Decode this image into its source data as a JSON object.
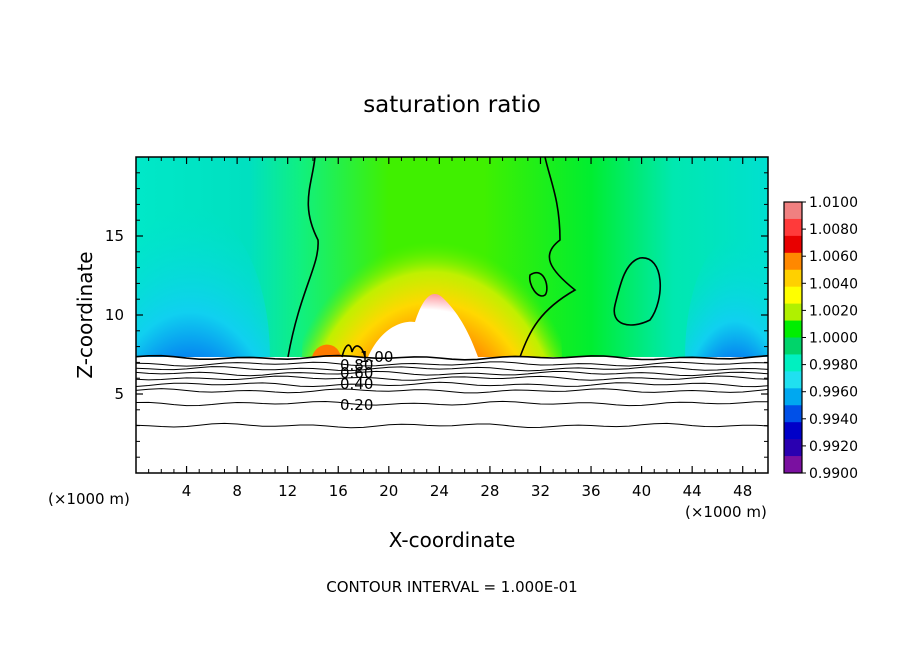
{
  "chart_data": {
    "type": "heatmap",
    "title": "saturation ratio",
    "xlabel": "X-coordinate",
    "ylabel": "Z-coordinate",
    "x_unit_left": "(×1000 m)",
    "x_unit_right": "(×1000 m)",
    "footer": "CONTOUR INTERVAL = 1.000E-01",
    "xlim": [
      0,
      50
    ],
    "ylim": [
      0,
      20
    ],
    "x_ticks": [
      "4",
      "8",
      "12",
      "16",
      "20",
      "24",
      "28",
      "32",
      "36",
      "40",
      "44",
      "48"
    ],
    "x_tick_values": [
      4,
      8,
      12,
      16,
      20,
      24,
      28,
      32,
      36,
      40,
      44,
      48
    ],
    "y_ticks": [
      "5",
      "10",
      "15"
    ],
    "y_tick_values": [
      5,
      10,
      15
    ],
    "colorbar": {
      "labels": [
        "1.0100",
        "1.0080",
        "1.0060",
        "1.0040",
        "1.0020",
        "1.0000",
        "0.9980",
        "0.9960",
        "0.9940",
        "0.9920",
        "0.9900"
      ],
      "values": [
        1.01,
        1.008,
        1.006,
        1.004,
        1.002,
        1.0,
        0.998,
        0.996,
        0.994,
        0.992,
        0.99
      ],
      "colors": [
        "#f08080",
        "#ff3a3a",
        "#e80000",
        "#ff8800",
        "#ffd000",
        "#ffff00",
        "#b0f000",
        "#00ee00",
        "#00d46a",
        "#00f0c0",
        "#20e0f0",
        "#00a8f0",
        "#0050e8",
        "#0000c8",
        "#2a00b0",
        "#7a10a0"
      ]
    },
    "contour_labels": [
      "1.00",
      "0.80",
      "0.60",
      "0.40",
      "0.20"
    ],
    "contour_label_values": [
      1.0,
      0.8,
      0.6,
      0.4,
      0.2
    ],
    "contour_levels": [
      0.2,
      0.3,
      0.4,
      0.5,
      0.6,
      0.7,
      0.8,
      0.9,
      1.0
    ],
    "field_top_z": 20,
    "field_bottom_z": 7.3,
    "supersaturated_core": {
      "x_center": 23.5,
      "z_center": 13,
      "max_value": 1.01
    }
  }
}
